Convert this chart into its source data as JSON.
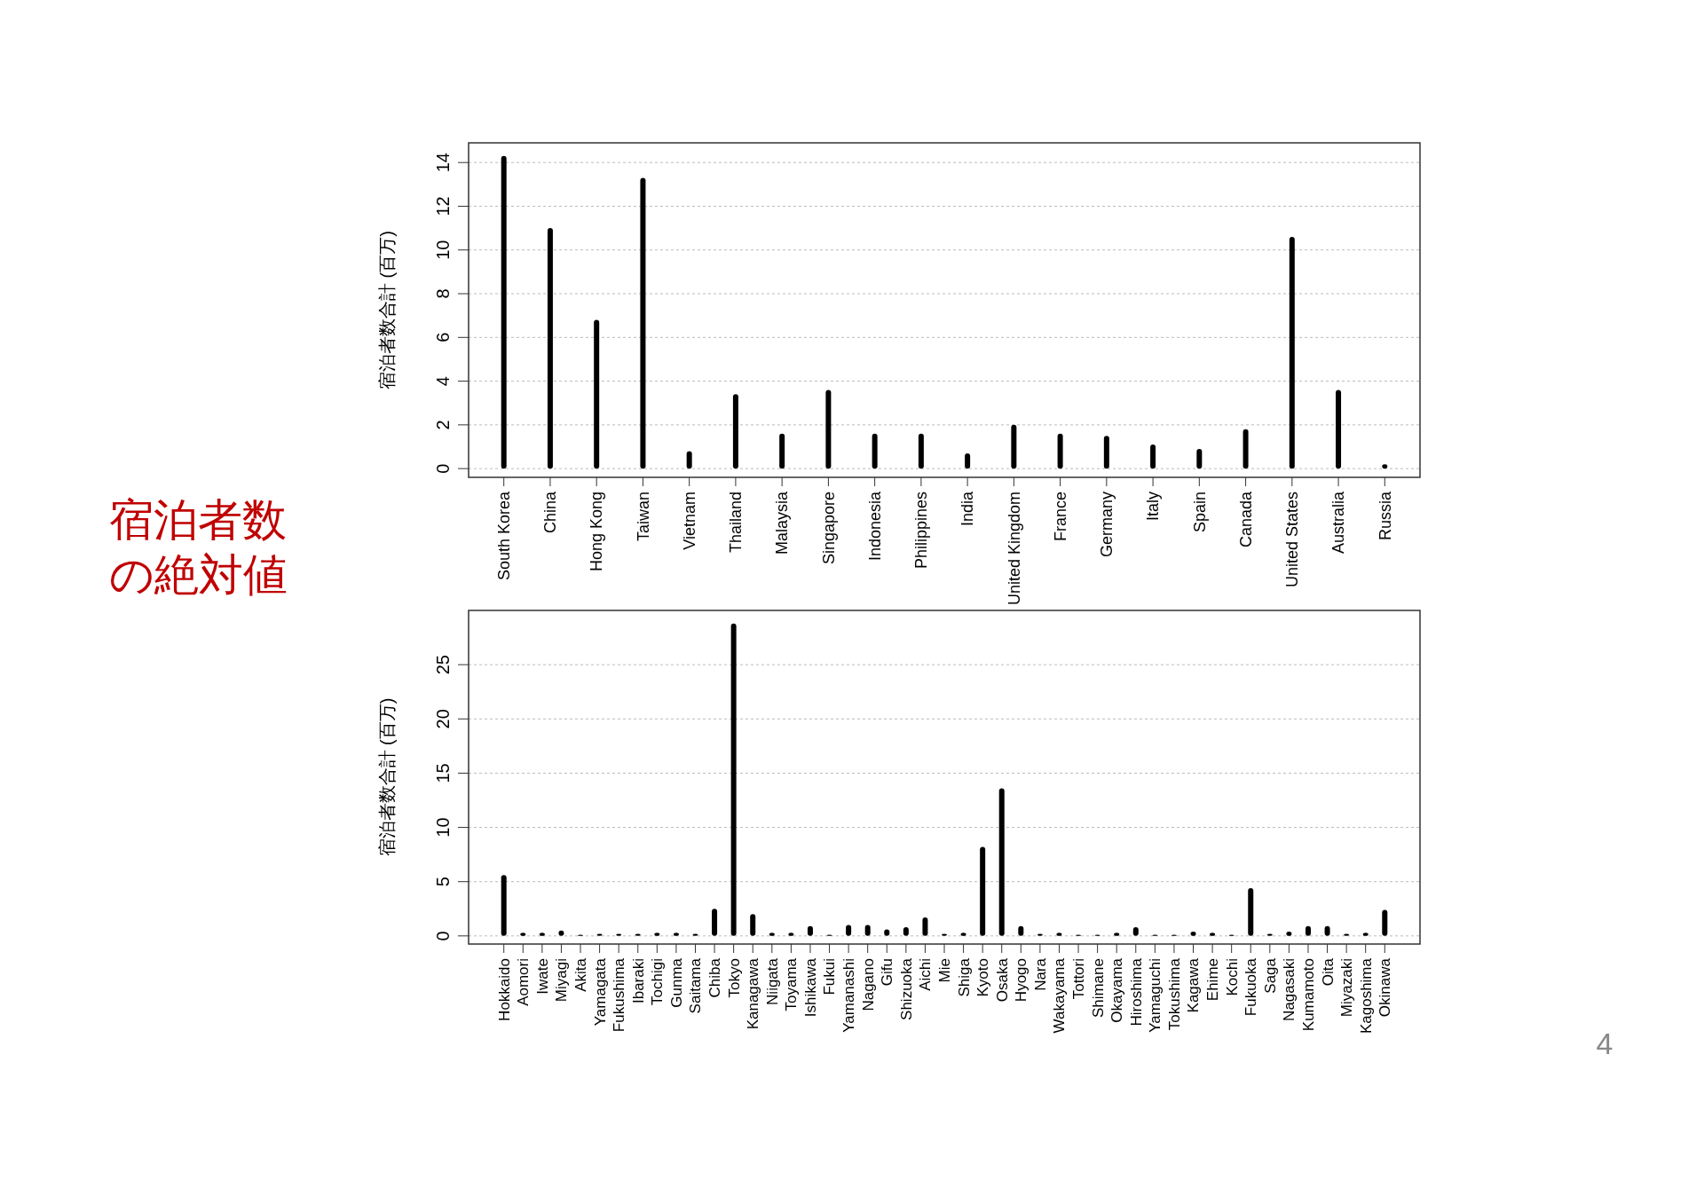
{
  "chart_data": [
    {
      "type": "bar",
      "ylabel": "宿泊者数合計 (百万)",
      "categories": [
        "South Korea",
        "China",
        "Hong Kong",
        "Taiwan",
        "Vietnam",
        "Thailand",
        "Malaysia",
        "Singapore",
        "Indonesia",
        "Philippines",
        "India",
        "United Kingdom",
        "France",
        "Germany",
        "Italy",
        "Spain",
        "Canada",
        "United States",
        "Australia",
        "Russia"
      ],
      "values": [
        14.3,
        11.0,
        6.8,
        13.3,
        0.8,
        3.4,
        1.6,
        3.6,
        1.6,
        1.6,
        0.7,
        2.0,
        1.6,
        1.5,
        1.1,
        0.9,
        1.8,
        10.6,
        3.6,
        0.2
      ],
      "color": "#000000",
      "ylim": [
        -0.4,
        14.9
      ],
      "yticks": [
        0,
        2,
        4,
        6,
        8,
        10,
        12,
        14
      ],
      "grid": "y",
      "annotations": [
        "宿泊者数の絶対値"
      ]
    },
    {
      "type": "bar",
      "ylabel": "宿泊者数合計 (百万)",
      "categories": [
        "Hokkaido",
        "Aomori",
        "Iwate",
        "Miyagi",
        "Akita",
        "Yamagata",
        "Fukushima",
        "Ibaraki",
        "Tochigi",
        "Gunma",
        "Saitama",
        "Chiba",
        "Tokyo",
        "Kanagawa",
        "Niigata",
        "Toyama",
        "Ishikawa",
        "Fukui",
        "Yamanashi",
        "Nagano",
        "Gifu",
        "Shizuoka",
        "Aichi",
        "Mie",
        "Shiga",
        "Kyoto",
        "Osaka",
        "Hyogo",
        "Nara",
        "Wakayama",
        "Tottori",
        "Shimane",
        "Okayama",
        "Hiroshima",
        "Yamaguchi",
        "Tokushima",
        "Kagawa",
        "Ehime",
        "Kochi",
        "Fukuoka",
        "Saga",
        "Nagasaki",
        "Kumamoto",
        "Oita",
        "Miyazaki",
        "Kagoshima",
        "Okinawa"
      ],
      "values": [
        5.6,
        0.3,
        0.3,
        0.5,
        0.1,
        0.2,
        0.2,
        0.2,
        0.3,
        0.3,
        0.2,
        2.5,
        28.8,
        2.0,
        0.3,
        0.3,
        0.9,
        0.1,
        1.0,
        1.0,
        0.6,
        0.8,
        1.7,
        0.2,
        0.3,
        8.2,
        13.6,
        0.9,
        0.2,
        0.3,
        0.1,
        0.1,
        0.3,
        0.8,
        0.1,
        0.1,
        0.4,
        0.3,
        0.1,
        4.4,
        0.2,
        0.4,
        0.9,
        0.9,
        0.2,
        0.3,
        2.4
      ],
      "color": "#000000",
      "ylim": [
        -0.75,
        30
      ],
      "yticks": [
        0,
        5,
        10,
        15,
        20,
        25
      ],
      "grid": "y",
      "annotations": [
        "4"
      ]
    }
  ]
}
